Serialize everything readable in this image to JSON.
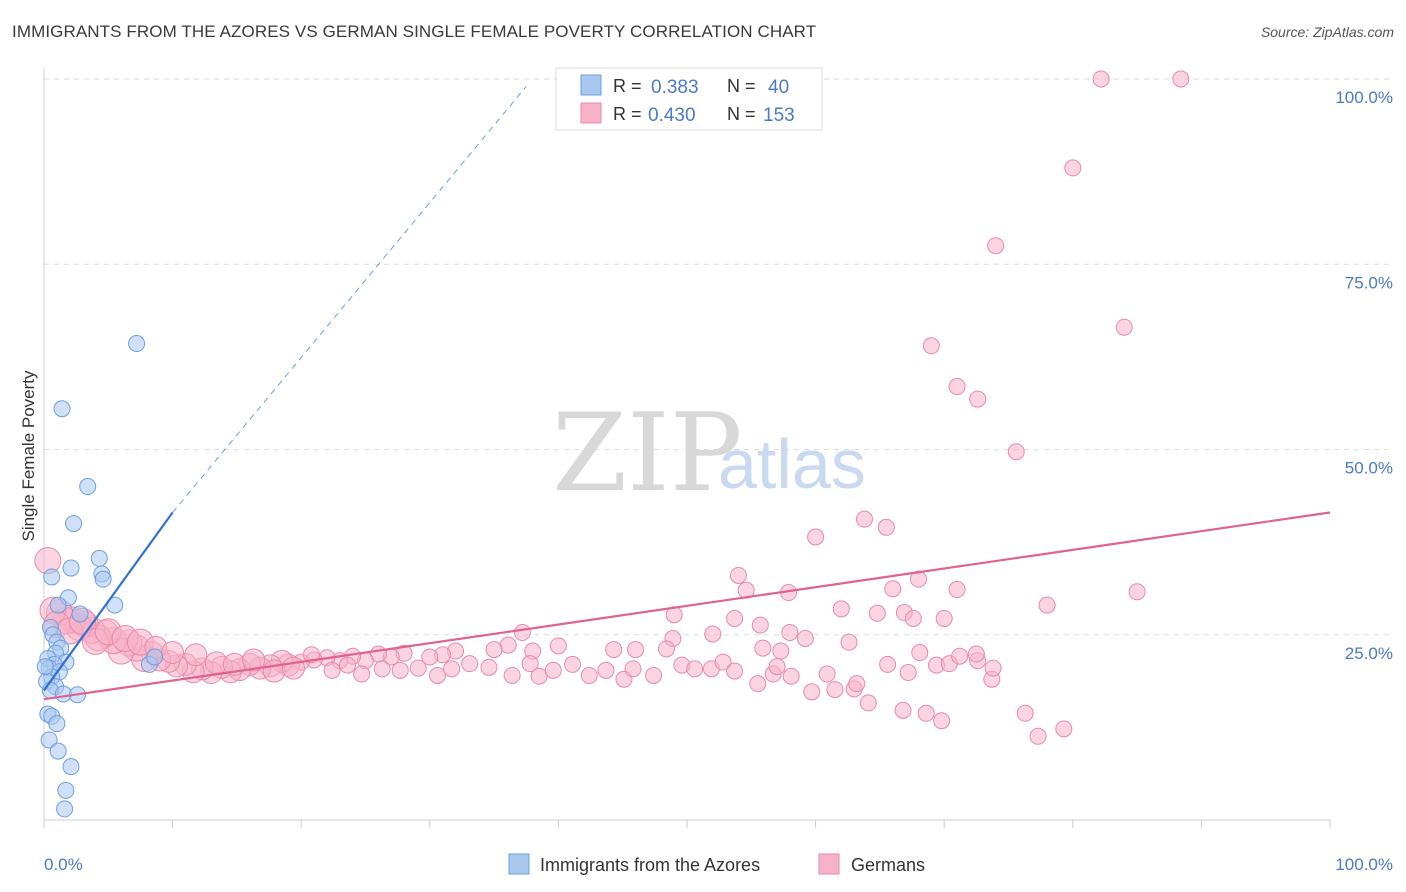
{
  "title": "IMMIGRANTS FROM THE AZORES VS GERMAN SINGLE FEMALE POVERTY CORRELATION CHART",
  "source": "Source: ZipAtlas.com",
  "watermark": {
    "zip": "ZIP",
    "atlas": "atlas"
  },
  "colors": {
    "blue_fill": "#a9c8f0",
    "blue_stroke": "#6f9ee0",
    "blue_line": "#2f72d6",
    "pink_fill": "#f6b3c8",
    "pink_stroke": "#e98aa8",
    "pink_line": "#e0628f",
    "tick_text": "#4a7ac9",
    "grid": "#dcdcdc"
  },
  "stats": {
    "r_label": "R =",
    "n_label": "N =",
    "rows": [
      {
        "series": "Immigrants from the Azores",
        "r": "0.383",
        "n": "40"
      },
      {
        "series": "Germans",
        "r": "0.430",
        "n": "153"
      }
    ]
  },
  "chart_data": {
    "type": "scatter",
    "title": "IMMIGRANTS FROM THE AZORES VS GERMAN SINGLE FEMALE POVERTY CORRELATION CHART",
    "xlabel": "",
    "ylabel": "Single Female Poverty",
    "xlim": [
      0,
      100
    ],
    "ylim": [
      0,
      100
    ],
    "x_ticks": [
      {
        "value": 0,
        "label": "0.0%"
      },
      {
        "value": 100,
        "label": "100.0%"
      }
    ],
    "y_ticks": [
      {
        "value": 25,
        "label": "25.0%"
      },
      {
        "value": 50,
        "label": "50.0%"
      },
      {
        "value": 75,
        "label": "75.0%"
      },
      {
        "value": 100,
        "label": "100.0%"
      }
    ],
    "grid": true,
    "legend": "bottom-center",
    "series": [
      {
        "name": "Immigrants from the Azores",
        "color": "#a9c8f0",
        "trendline": {
          "x": [
            0,
            10
          ],
          "y": [
            17.5,
            41.5
          ],
          "dashed_extension_to": [
            37.5,
            99
          ]
        },
        "points": [
          [
            7.2,
            64.3
          ],
          [
            1.4,
            55.5
          ],
          [
            3.4,
            45.0
          ],
          [
            2.3,
            40.0
          ],
          [
            2.1,
            34.0
          ],
          [
            4.3,
            35.3
          ],
          [
            4.5,
            33.2
          ],
          [
            4.6,
            32.5
          ],
          [
            0.6,
            32.8
          ],
          [
            1.9,
            30.0
          ],
          [
            5.5,
            29.0
          ],
          [
            1.1,
            29.0
          ],
          [
            2.8,
            27.8
          ],
          [
            0.5,
            26.0
          ],
          [
            0.7,
            25.0
          ],
          [
            1.0,
            24.0
          ],
          [
            1.3,
            23.2
          ],
          [
            0.9,
            22.5
          ],
          [
            0.3,
            21.8
          ],
          [
            1.7,
            21.3
          ],
          [
            0.8,
            21.0
          ],
          [
            0.4,
            20.5
          ],
          [
            1.2,
            20.0
          ],
          [
            0.6,
            19.3
          ],
          [
            0.2,
            18.7
          ],
          [
            0.9,
            18.0
          ],
          [
            0.5,
            17.5
          ],
          [
            1.5,
            17.0
          ],
          [
            2.6,
            16.9
          ],
          [
            0.3,
            14.3
          ],
          [
            0.6,
            14.0
          ],
          [
            1.0,
            13.0
          ],
          [
            0.4,
            10.8
          ],
          [
            1.1,
            9.3
          ],
          [
            2.1,
            7.2
          ],
          [
            1.7,
            4.0
          ],
          [
            1.6,
            1.5
          ],
          [
            8.2,
            21.0
          ],
          [
            8.6,
            22.0
          ],
          [
            0.1,
            20.7
          ]
        ]
      },
      {
        "name": "Germans",
        "color": "#f6b3c8",
        "trendline": {
          "x": [
            0,
            100
          ],
          "y": [
            16.3,
            41.5
          ]
        },
        "points": [
          [
            82.2,
            100.0
          ],
          [
            88.4,
            100.0
          ],
          [
            80.0,
            88.0
          ],
          [
            74.0,
            77.5
          ],
          [
            84.0,
            66.5
          ],
          [
            69.0,
            64.0
          ],
          [
            71.0,
            58.5
          ],
          [
            72.6,
            56.8
          ],
          [
            75.6,
            49.7
          ],
          [
            63.8,
            40.6
          ],
          [
            65.5,
            39.5
          ],
          [
            60.0,
            38.2
          ],
          [
            54.0,
            33.0
          ],
          [
            68.0,
            32.5
          ],
          [
            54.6,
            31.0
          ],
          [
            66.0,
            31.2
          ],
          [
            57.9,
            30.7
          ],
          [
            71.0,
            31.1
          ],
          [
            85.0,
            30.8
          ],
          [
            78.0,
            29.0
          ],
          [
            62.0,
            28.5
          ],
          [
            64.8,
            27.9
          ],
          [
            66.9,
            28.0
          ],
          [
            67.6,
            27.2
          ],
          [
            70.0,
            27.2
          ],
          [
            49.0,
            27.7
          ],
          [
            53.7,
            27.2
          ],
          [
            55.7,
            26.3
          ],
          [
            58.0,
            25.3
          ],
          [
            52.0,
            25.1
          ],
          [
            37.2,
            25.3
          ],
          [
            59.2,
            24.5
          ],
          [
            36.1,
            23.6
          ],
          [
            62.6,
            24.0
          ],
          [
            48.9,
            24.5
          ],
          [
            68.1,
            22.6
          ],
          [
            55.9,
            23.2
          ],
          [
            57.3,
            22.8
          ],
          [
            48.4,
            23.1
          ],
          [
            46.0,
            23.0
          ],
          [
            44.3,
            23.0
          ],
          [
            40.0,
            23.5
          ],
          [
            38.0,
            22.8
          ],
          [
            35.0,
            23.0
          ],
          [
            32.0,
            22.8
          ],
          [
            31.0,
            22.3
          ],
          [
            30.0,
            22.0
          ],
          [
            28.0,
            22.5
          ],
          [
            27.0,
            22.0
          ],
          [
            26.0,
            22.4
          ],
          [
            25.0,
            21.5
          ],
          [
            24.0,
            22.1
          ],
          [
            23.0,
            21.5
          ],
          [
            22.0,
            21.9
          ],
          [
            21.0,
            21.6
          ],
          [
            20.0,
            21.3
          ],
          [
            19.0,
            20.9
          ],
          [
            18.5,
            21.4
          ],
          [
            17.6,
            20.8
          ],
          [
            16.8,
            20.5
          ],
          [
            16.0,
            21.0
          ],
          [
            15.2,
            20.3
          ],
          [
            14.5,
            20.0
          ],
          [
            13.8,
            20.6
          ],
          [
            13.0,
            19.9
          ],
          [
            12.3,
            20.4
          ],
          [
            11.6,
            20.0
          ],
          [
            11.0,
            21.0
          ],
          [
            10.3,
            20.8
          ],
          [
            9.7,
            21.4
          ],
          [
            9.0,
            21.6
          ],
          [
            8.4,
            22.6
          ],
          [
            7.8,
            21.8
          ],
          [
            7.2,
            23.2
          ],
          [
            6.6,
            23.9
          ],
          [
            6.0,
            22.8
          ],
          [
            5.4,
            24.2
          ],
          [
            4.8,
            25.2
          ],
          [
            4.2,
            24.6
          ],
          [
            3.7,
            25.6
          ],
          [
            3.2,
            26.4
          ],
          [
            2.7,
            26.0
          ],
          [
            2.2,
            27.0
          ],
          [
            1.7,
            26.9
          ],
          [
            1.2,
            28.0
          ],
          [
            0.7,
            28.3
          ],
          [
            0.3,
            35.0
          ],
          [
            1.0,
            26.4
          ],
          [
            2.0,
            25.5
          ],
          [
            3.0,
            26.8
          ],
          [
            4.0,
            24.1
          ],
          [
            5.0,
            25.4
          ],
          [
            6.3,
            24.5
          ],
          [
            7.5,
            24.0
          ],
          [
            8.7,
            23.3
          ],
          [
            10.0,
            22.6
          ],
          [
            11.8,
            22.3
          ],
          [
            13.4,
            21.2
          ],
          [
            14.8,
            21.0
          ],
          [
            16.3,
            21.6
          ],
          [
            17.9,
            20.1
          ],
          [
            19.4,
            20.5
          ],
          [
            20.8,
            22.3
          ],
          [
            22.4,
            20.2
          ],
          [
            23.6,
            20.9
          ],
          [
            24.7,
            19.7
          ],
          [
            26.3,
            20.4
          ],
          [
            27.7,
            20.2
          ],
          [
            29.1,
            20.5
          ],
          [
            30.6,
            19.5
          ],
          [
            31.7,
            20.4
          ],
          [
            33.1,
            21.1
          ],
          [
            34.6,
            20.6
          ],
          [
            36.4,
            19.5
          ],
          [
            37.8,
            21.1
          ],
          [
            38.5,
            19.4
          ],
          [
            39.6,
            20.2
          ],
          [
            41.1,
            21.0
          ],
          [
            42.4,
            19.5
          ],
          [
            43.7,
            20.2
          ],
          [
            45.1,
            19.0
          ],
          [
            45.8,
            20.4
          ],
          [
            47.4,
            19.5
          ],
          [
            49.6,
            20.9
          ],
          [
            50.6,
            20.4
          ],
          [
            51.9,
            20.4
          ],
          [
            52.8,
            21.3
          ],
          [
            53.7,
            20.1
          ],
          [
            55.5,
            18.4
          ],
          [
            56.7,
            19.7
          ],
          [
            58.1,
            19.4
          ],
          [
            59.7,
            17.3
          ],
          [
            60.9,
            19.7
          ],
          [
            61.5,
            17.6
          ],
          [
            63.0,
            17.7
          ],
          [
            64.1,
            15.8
          ],
          [
            65.6,
            21.0
          ],
          [
            67.2,
            19.9
          ],
          [
            69.4,
            20.9
          ],
          [
            70.4,
            21.1
          ],
          [
            72.6,
            21.5
          ],
          [
            73.7,
            19.0
          ],
          [
            76.3,
            14.4
          ],
          [
            77.3,
            11.3
          ],
          [
            79.3,
            12.3
          ],
          [
            71.2,
            22.1
          ],
          [
            72.5,
            22.4
          ],
          [
            73.8,
            20.5
          ],
          [
            57.0,
            20.7
          ],
          [
            63.2,
            18.4
          ],
          [
            66.8,
            14.8
          ],
          [
            68.6,
            14.4
          ],
          [
            69.8,
            13.4
          ]
        ]
      }
    ]
  }
}
